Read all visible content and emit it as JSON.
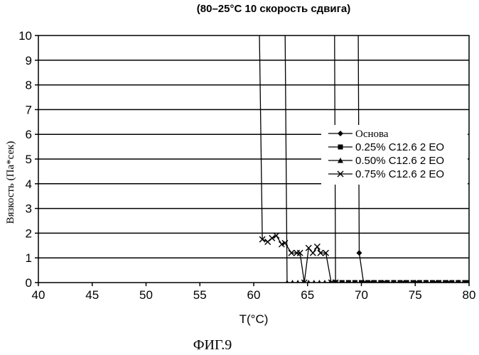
{
  "chart_data": {
    "type": "line",
    "title": "(80–25°C 10 скорость сдвига)",
    "xlabel": "T(°C)",
    "ylabel": "Вязкость (Па*сек)",
    "caption": "ФИГ.9",
    "xlim": [
      40,
      80
    ],
    "ylim": [
      0,
      10
    ],
    "x_ticks": [
      40,
      45,
      50,
      55,
      60,
      65,
      70,
      75,
      80
    ],
    "y_ticks": [
      0,
      1,
      2,
      3,
      4,
      5,
      6,
      7,
      8,
      9,
      10
    ],
    "grid": "horizontal",
    "legend_position": "right",
    "series": [
      {
        "name": "Основа",
        "marker": "diamond",
        "points": [
          [
            69.7,
            11
          ],
          [
            69.8,
            1.2
          ],
          [
            70.2,
            0
          ],
          [
            71,
            0
          ],
          [
            72,
            0
          ],
          [
            73,
            0
          ],
          [
            74,
            0
          ],
          [
            75,
            0
          ],
          [
            76,
            0
          ],
          [
            77,
            0
          ],
          [
            78,
            0
          ],
          [
            79,
            0
          ],
          [
            80,
            0
          ]
        ]
      },
      {
        "name": "0.25% C12.6 2 EO",
        "marker": "square",
        "points": [
          [
            67.5,
            11
          ],
          [
            67.6,
            0
          ],
          [
            68.2,
            0
          ],
          [
            68.8,
            0
          ],
          [
            69.4,
            0
          ],
          [
            70,
            0
          ],
          [
            70.6,
            0
          ],
          [
            71.2,
            0
          ],
          [
            71.8,
            0
          ],
          [
            72.4,
            0
          ],
          [
            73,
            0
          ],
          [
            73.6,
            0
          ],
          [
            74.2,
            0
          ],
          [
            74.8,
            0
          ],
          [
            75.4,
            0
          ],
          [
            76,
            0
          ],
          [
            76.6,
            0
          ],
          [
            77.2,
            0
          ],
          [
            77.8,
            0
          ],
          [
            78.4,
            0
          ],
          [
            79,
            0
          ],
          [
            79.6,
            0
          ],
          [
            80,
            0
          ]
        ]
      },
      {
        "name": "0.50% C12.6 2 EO",
        "marker": "triangle",
        "points": [
          [
            62.9,
            11
          ],
          [
            63.1,
            0
          ],
          [
            63.6,
            0
          ],
          [
            64.1,
            0
          ],
          [
            64.6,
            0
          ],
          [
            65.1,
            0
          ],
          [
            65.6,
            0
          ],
          [
            66.1,
            0
          ],
          [
            66.6,
            0
          ],
          [
            67.1,
            0
          ],
          [
            67.5,
            0
          ]
        ]
      },
      {
        "name": "0.75% C12.6 2 EO",
        "marker": "x",
        "points": [
          [
            60.5,
            11
          ],
          [
            60.8,
            1.75
          ],
          [
            61.3,
            1.65
          ],
          [
            61.7,
            1.8
          ],
          [
            62.1,
            1.9
          ],
          [
            62.6,
            1.55
          ],
          [
            62.9,
            1.6
          ],
          [
            63.5,
            1.2
          ],
          [
            64.0,
            1.2
          ],
          [
            64.3,
            1.2
          ],
          [
            64.7,
            0
          ],
          [
            65.1,
            1.4
          ],
          [
            65.5,
            1.2
          ],
          [
            65.9,
            1.45
          ],
          [
            66.2,
            1.2
          ],
          [
            66.7,
            1.2
          ],
          [
            67.2,
            0
          ],
          [
            67.6,
            0
          ]
        ]
      }
    ]
  }
}
